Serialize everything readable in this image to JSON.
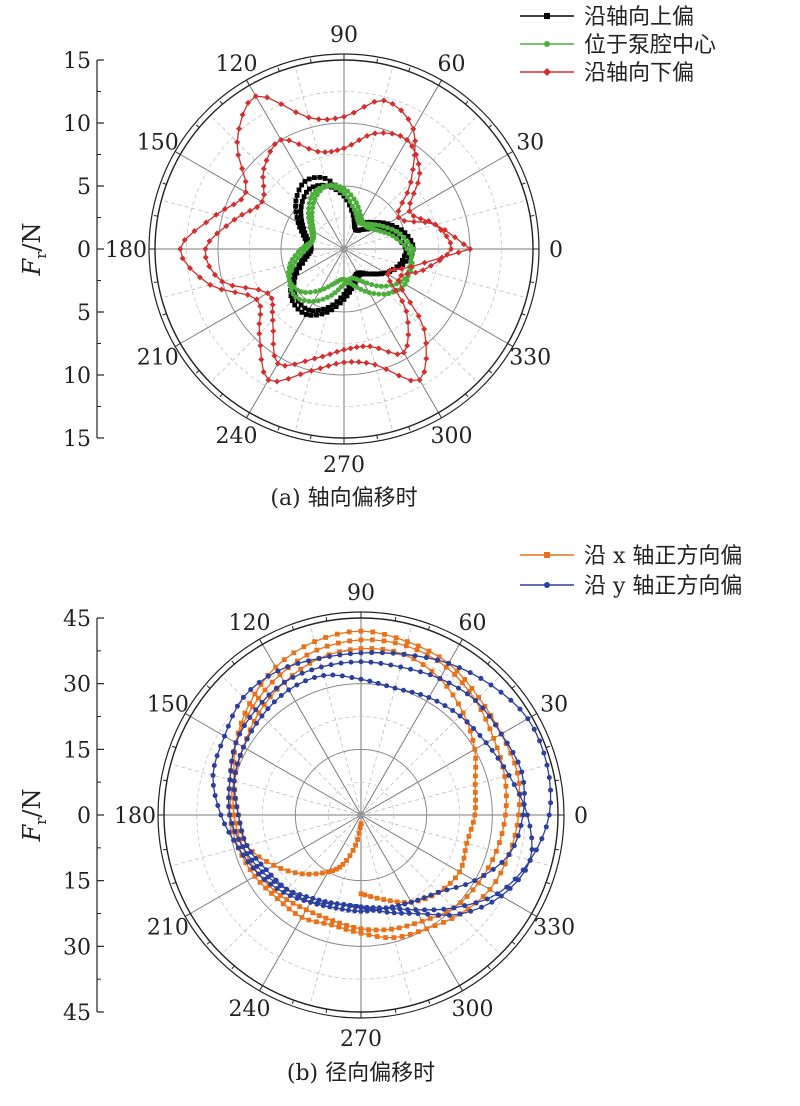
{
  "chart_data": [
    {
      "type": "polar-line",
      "caption": "(a) 轴向偏移时",
      "ylabel_main": "F",
      "ylabel_sub": "r",
      "ylabel_unit": "/N",
      "radial_range": [
        0,
        15
      ],
      "radial_ticks": [
        0,
        5,
        10,
        15
      ],
      "radial_tick_labels": [
        "15",
        "10",
        "5",
        "0",
        "5",
        "10",
        "15"
      ],
      "angle_ticks": [
        "0",
        "30",
        "60",
        "90",
        "120",
        "150",
        "180",
        "210",
        "240",
        "270",
        "300",
        "330"
      ],
      "grid": true,
      "legend_position": "top-right",
      "series": [
        {
          "name": "沿轴向上偏",
          "color": "#000000",
          "marker": "square",
          "theta": [
            0,
            15,
            30,
            45,
            60,
            75,
            90,
            105,
            120,
            135,
            150,
            165,
            180,
            195,
            210,
            225,
            240,
            255,
            270,
            285,
            300,
            315,
            330,
            345,
            360,
            375,
            390,
            405,
            420,
            435,
            450,
            465,
            480,
            495,
            510,
            525,
            540,
            555,
            570,
            585,
            600,
            615,
            630,
            645,
            660,
            675,
            690,
            705,
            720
          ],
          "r": [
            5.0,
            4.2,
            3.2,
            2.2,
            1.8,
            2.8,
            4.3,
            5.8,
            6.2,
            5.4,
            4.2,
            3.2,
            2.8,
            3.5,
            4.8,
            5.8,
            6.0,
            5.2,
            4.0,
            3.0,
            2.4,
            2.8,
            3.8,
            4.8,
            5.5,
            5.0,
            4.0,
            3.0,
            2.5,
            3.0,
            4.2,
            5.2,
            5.5,
            4.8,
            3.8,
            3.0,
            2.6,
            3.2,
            4.5,
            5.4,
            5.6,
            4.8,
            3.6,
            2.6,
            2.2,
            2.8,
            3.8,
            4.6,
            5.0
          ]
        },
        {
          "name": "位于泵腔中心",
          "color": "#4caf3c",
          "marker": "circle",
          "theta": [
            0,
            15,
            30,
            45,
            60,
            75,
            90,
            105,
            120,
            135,
            150,
            165,
            180,
            195,
            210,
            225,
            240,
            255,
            270,
            285,
            300,
            315,
            330,
            345,
            360,
            375,
            390,
            405,
            420,
            435,
            450,
            465,
            480,
            495,
            510,
            525,
            540,
            555,
            570,
            585,
            600,
            615,
            630,
            645,
            660,
            675,
            690,
            705,
            720
          ],
          "r": [
            5.5,
            4.6,
            3.6,
            2.8,
            2.4,
            3.2,
            4.4,
            5.2,
            5.0,
            4.0,
            3.0,
            2.6,
            3.0,
            4.0,
            5.0,
            5.4,
            4.8,
            3.8,
            2.8,
            2.4,
            3.0,
            4.2,
            5.2,
            5.6,
            5.0,
            4.0,
            3.0,
            2.5,
            2.8,
            3.8,
            4.8,
            5.2,
            4.6,
            3.6,
            2.8,
            2.6,
            3.4,
            4.4,
            5.0,
            4.8,
            3.8,
            2.8,
            2.4,
            3.0,
            4.0,
            5.0,
            5.6,
            5.4,
            5.5
          ]
        },
        {
          "name": "沿轴向下偏",
          "color": "#d32f2f",
          "marker": "diamond",
          "theta": [
            0,
            15,
            30,
            45,
            60,
            75,
            90,
            105,
            120,
            135,
            150,
            165,
            180,
            195,
            210,
            225,
            240,
            255,
            270,
            285,
            300,
            315,
            330,
            345,
            360,
            375,
            390,
            405,
            420,
            435,
            450,
            465,
            480,
            495,
            510,
            525,
            540,
            555,
            570,
            585,
            600,
            615,
            630,
            645,
            660,
            675,
            690,
            705,
            720
          ],
          "r": [
            10.0,
            7.5,
            5.0,
            7.5,
            11.0,
            12.2,
            10.5,
            10.8,
            14.0,
            12.0,
            9.0,
            10.5,
            13.0,
            11.0,
            8.0,
            9.5,
            12.0,
            10.0,
            9.0,
            9.5,
            12.0,
            9.0,
            5.0,
            6.5,
            8.5,
            7.5,
            6.0,
            8.5,
            10.0,
            9.5,
            8.0,
            8.0,
            10.0,
            9.0,
            7.5,
            9.0,
            11.0,
            10.0,
            7.0,
            8.0,
            10.5,
            9.0,
            8.0,
            8.0,
            9.5,
            7.0,
            4.0,
            5.5,
            10.0
          ]
        }
      ]
    },
    {
      "type": "polar-line",
      "caption": "(b) 径向偏移时",
      "ylabel_main": "F",
      "ylabel_sub": "r",
      "ylabel_unit": "/N",
      "radial_range": [
        0,
        45
      ],
      "radial_ticks": [
        0,
        15,
        30,
        45
      ],
      "radial_tick_labels": [
        "45",
        "30",
        "15",
        "0",
        "15",
        "30",
        "45"
      ],
      "angle_ticks": [
        "0",
        "30",
        "60",
        "90",
        "120",
        "150",
        "180",
        "210",
        "240",
        "270",
        "300",
        "330"
      ],
      "grid": true,
      "legend_position": "top-right",
      "series": [
        {
          "name": "沿 x 轴正方向偏",
          "color": "#e8721c",
          "marker": "square",
          "theta": [
            270,
            260,
            250,
            240,
            225,
            210,
            195,
            180,
            165,
            150,
            135,
            120,
            105,
            90,
            75,
            60,
            45,
            30,
            15,
            0,
            345,
            330,
            315,
            300,
            285,
            270,
            255,
            240,
            225,
            210,
            195,
            180,
            165,
            150,
            135,
            120,
            105,
            90,
            75,
            60,
            45,
            30,
            15,
            0,
            345,
            330,
            315,
            300,
            285,
            270,
            255,
            240,
            225,
            210,
            195,
            180,
            165,
            150,
            135,
            120,
            105,
            90,
            75,
            60,
            45,
            30,
            15,
            0,
            345,
            330,
            315,
            300,
            285,
            270
          ],
          "r": [
            2,
            7,
            12,
            15,
            19,
            23,
            27,
            28,
            30,
            33,
            36,
            39,
            41,
            42,
            41,
            40,
            38,
            37,
            37,
            36,
            35,
            34,
            32,
            30,
            29,
            27,
            26,
            27,
            27,
            28,
            29,
            30,
            31,
            33,
            35,
            37,
            39,
            40,
            40,
            39,
            37,
            35,
            34,
            33,
            32,
            31,
            30,
            28,
            27,
            26,
            25,
            25,
            26,
            27,
            28,
            29,
            30,
            31,
            33,
            35,
            37,
            38,
            38,
            36,
            33,
            30,
            27,
            26,
            25,
            26,
            25,
            23,
            20,
            18
          ]
        },
        {
          "name": "沿 y 轴正方向偏",
          "color": "#2b3f9e",
          "marker": "circle",
          "theta": [
            270,
            255,
            240,
            225,
            210,
            195,
            180,
            165,
            150,
            135,
            120,
            105,
            90,
            75,
            60,
            45,
            30,
            15,
            0,
            345,
            330,
            315,
            300,
            285,
            270,
            255,
            240,
            225,
            210,
            195,
            180,
            165,
            150,
            135,
            120,
            105,
            90,
            75,
            60,
            45,
            30,
            15,
            0,
            345,
            330,
            315,
            300,
            285,
            270,
            255,
            240,
            225,
            210,
            195,
            180,
            165,
            150,
            135,
            120,
            105,
            90,
            75,
            60,
            45,
            30,
            15,
            0,
            345,
            330,
            315,
            300,
            285,
            270
          ],
          "r": [
            21,
            21,
            23,
            25,
            27,
            29,
            32,
            35,
            36,
            38,
            38,
            37,
            37,
            38,
            40,
            42,
            44,
            44,
            43,
            40,
            36,
            30,
            25,
            22,
            21,
            21,
            22,
            24,
            26,
            28,
            30,
            31,
            33,
            34,
            35,
            35,
            35,
            35,
            36,
            37,
            37,
            38,
            37,
            35,
            30,
            25,
            23,
            22,
            22,
            22,
            23,
            24,
            25,
            27,
            28,
            30,
            31,
            32,
            33,
            33,
            31,
            30,
            31,
            32,
            33,
            35,
            38,
            40,
            37,
            32,
            26,
            23,
            21
          ]
        }
      ]
    }
  ]
}
